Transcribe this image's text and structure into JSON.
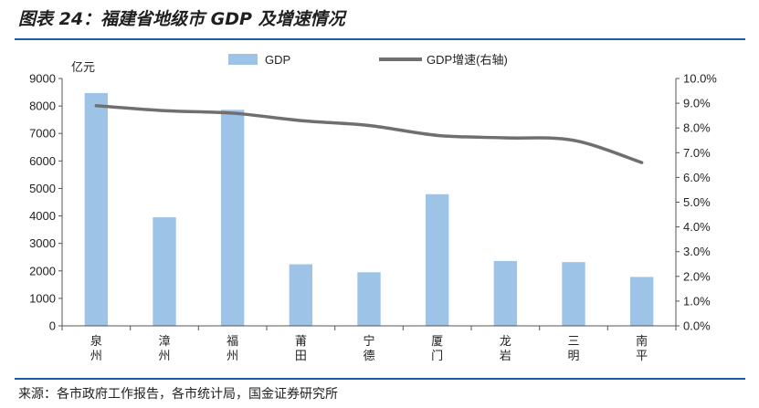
{
  "header": {
    "title": "图表 24：福建省地级市 GDP 及增速情况"
  },
  "footer": {
    "source": "来源：各市政府工作报告，各市统计局，国金证券研究所"
  },
  "chart_data": {
    "type": "bar",
    "title": "",
    "y_unit_label": "亿元",
    "categories": [
      [
        "泉",
        "州"
      ],
      [
        "漳",
        "州"
      ],
      [
        "福",
        "州"
      ],
      [
        "莆",
        "田"
      ],
      [
        "宁",
        "德"
      ],
      [
        "厦",
        "门"
      ],
      [
        "龙",
        "岩"
      ],
      [
        "三",
        "明"
      ],
      [
        "南",
        "平"
      ]
    ],
    "series": [
      {
        "name": "GDP",
        "type": "bar",
        "axis": "left",
        "color": "#9dc3e6",
        "values": [
          8470,
          3950,
          7860,
          2240,
          1950,
          4790,
          2360,
          2320,
          1780
        ]
      },
      {
        "name": "GDP增速(右轴)",
        "type": "line",
        "axis": "right",
        "color": "#6f6f6f",
        "values": [
          8.9,
          8.7,
          8.6,
          8.3,
          8.1,
          7.7,
          7.6,
          7.5,
          6.6
        ]
      }
    ],
    "y_left": {
      "min": 0,
      "max": 9000,
      "step": 1000,
      "ticks": [
        "0",
        "1000",
        "2000",
        "3000",
        "4000",
        "5000",
        "6000",
        "7000",
        "8000",
        "9000"
      ]
    },
    "y_right": {
      "min": 0,
      "max": 10,
      "step": 1,
      "ticks": [
        "0.0%",
        "1.0%",
        "2.0%",
        "3.0%",
        "4.0%",
        "5.0%",
        "6.0%",
        "7.0%",
        "8.0%",
        "9.0%",
        "10.0%"
      ]
    },
    "grid": false,
    "legend": "top"
  }
}
